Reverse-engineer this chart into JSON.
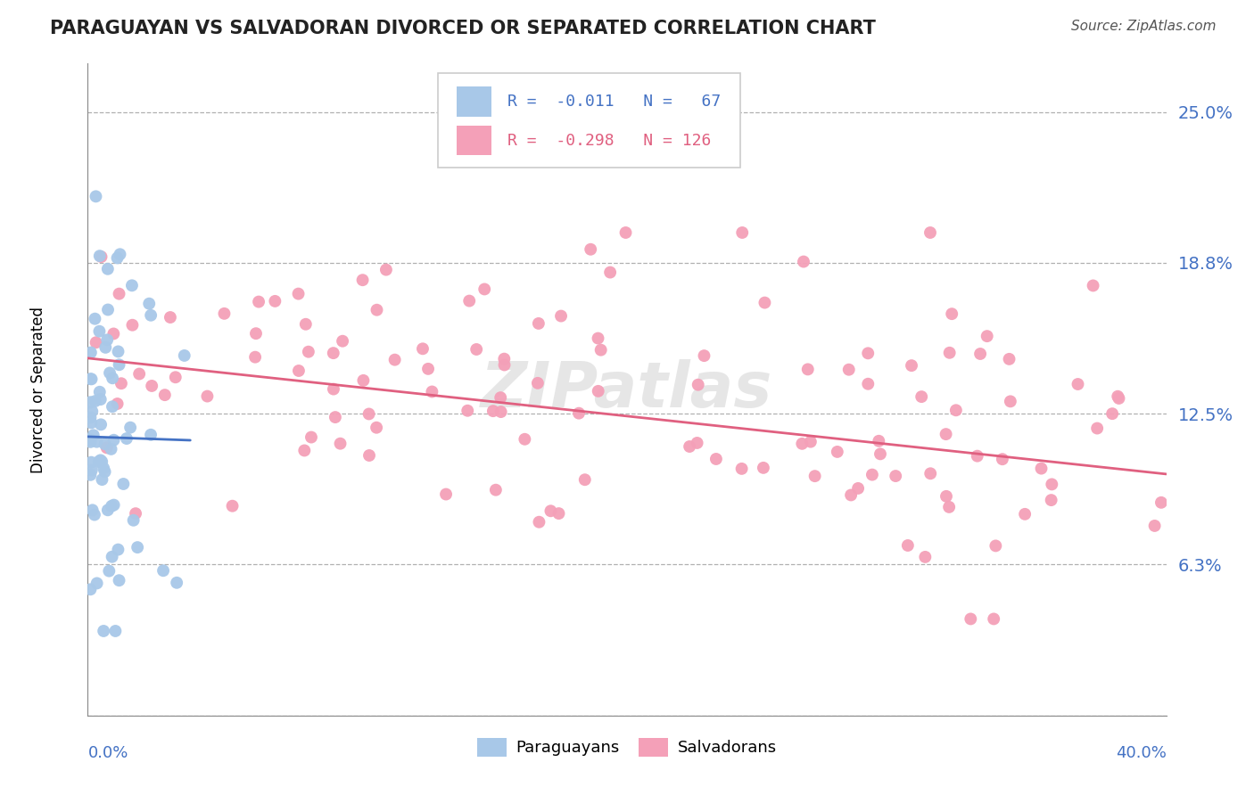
{
  "title": "PARAGUAYAN VS SALVADORAN DIVORCED OR SEPARATED CORRELATION CHART",
  "source": "Source: ZipAtlas.com",
  "ylabel": "Divorced or Separated",
  "color_paraguayan": "#a8c8e8",
  "color_salvadoran": "#f4a0b8",
  "color_blue_text": "#4472c4",
  "color_pink_text": "#e06080",
  "xlim": [
    0.0,
    0.4
  ],
  "ylim": [
    0.0,
    0.27
  ],
  "ytick_vals": [
    0.0,
    0.0625,
    0.125,
    0.1875,
    0.25
  ],
  "ytick_labels": [
    "",
    "6.3%",
    "12.5%",
    "18.8%",
    "25.0%"
  ],
  "par_trendline_x": [
    0.0,
    0.038
  ],
  "par_trendline_y": [
    0.1155,
    0.114
  ],
  "sal_trendline_x": [
    0.0,
    0.4
  ],
  "sal_trendline_y": [
    0.148,
    0.1
  ]
}
